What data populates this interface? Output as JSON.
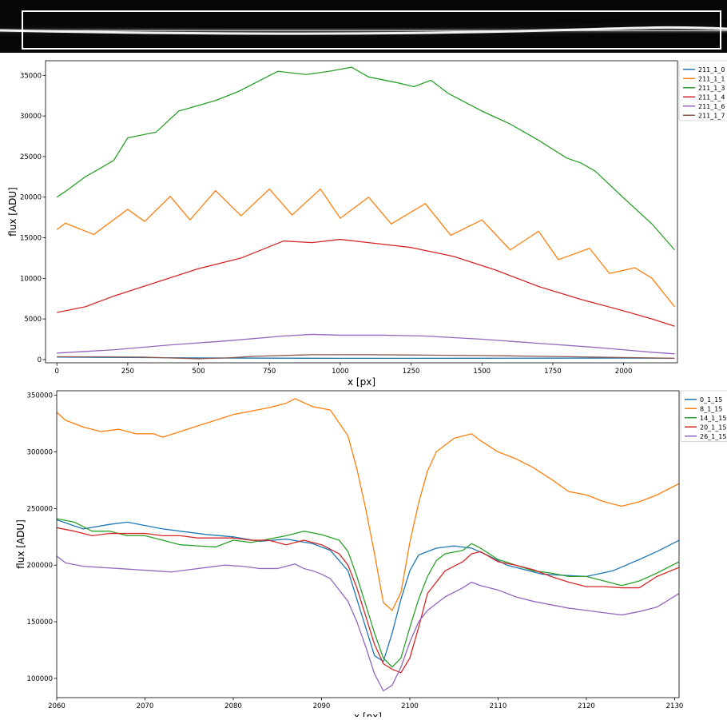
{
  "colors": [
    "#1f77b4",
    "#ff7f0e",
    "#2ca02c",
    "#d62728",
    "#9467bd",
    "#8c564b"
  ],
  "strip": {
    "label": "2D spectrum strip image with extraction box"
  },
  "chart_data": [
    {
      "type": "line",
      "xlabel": "x [px]",
      "ylabel": "flux [ADU]",
      "xlim": [
        -40,
        2190
      ],
      "ylim": [
        -400,
        36800
      ],
      "xticks": [
        0,
        250,
        500,
        750,
        1000,
        1250,
        1500,
        1750,
        2000
      ],
      "yticks": [
        0,
        5000,
        10000,
        15000,
        20000,
        25000,
        30000,
        35000
      ],
      "legend": "top-right",
      "grid": false,
      "series": [
        {
          "name": "211_1_0",
          "x": [
            0,
            250,
            500,
            750,
            1000,
            1250,
            1500,
            1750,
            2000,
            2180
          ],
          "y": [
            300,
            250,
            200,
            170,
            150,
            150,
            160,
            170,
            180,
            150
          ]
        },
        {
          "name": "211_1_1",
          "x": [
            0,
            30,
            130,
            250,
            310,
            400,
            470,
            560,
            650,
            750,
            830,
            930,
            1000,
            1100,
            1180,
            1300,
            1390,
            1500,
            1600,
            1700,
            1770,
            1880,
            1950,
            2040,
            2100,
            2180
          ],
          "y": [
            16000,
            16800,
            15400,
            18500,
            17000,
            20100,
            17200,
            20800,
            17700,
            21000,
            17800,
            21000,
            17400,
            20000,
            16700,
            19200,
            15300,
            17200,
            13500,
            15800,
            12300,
            13700,
            10600,
            11300,
            10000,
            6500
          ]
        },
        {
          "name": "211_1_3",
          "x": [
            0,
            30,
            100,
            200,
            250,
            350,
            430,
            560,
            640,
            780,
            880,
            960,
            1040,
            1100,
            1200,
            1260,
            1320,
            1380,
            1500,
            1600,
            1700,
            1800,
            1850,
            1900,
            2000,
            2100,
            2180
          ],
          "y": [
            20000,
            20700,
            22500,
            24500,
            27300,
            28000,
            30600,
            31900,
            33000,
            35500,
            35100,
            35500,
            36000,
            34800,
            34100,
            33600,
            34400,
            32800,
            30600,
            29000,
            27000,
            24800,
            24200,
            23200,
            19900,
            16700,
            13500
          ]
        },
        {
          "name": "211_1_4",
          "x": [
            0,
            100,
            200,
            350,
            500,
            650,
            800,
            900,
            1000,
            1100,
            1250,
            1400,
            1550,
            1700,
            1850,
            2000,
            2100,
            2180
          ],
          "y": [
            5800,
            6500,
            7800,
            9500,
            11200,
            12500,
            14600,
            14400,
            14800,
            14400,
            13800,
            12700,
            11000,
            9000,
            7400,
            6000,
            5000,
            4100
          ]
        },
        {
          "name": "211_1_6",
          "x": [
            0,
            200,
            400,
            600,
            800,
            900,
            1000,
            1150,
            1300,
            1500,
            1700,
            1900,
            2100,
            2180
          ],
          "y": [
            800,
            1200,
            1800,
            2300,
            2900,
            3100,
            3000,
            3000,
            2900,
            2500,
            2000,
            1500,
            900,
            700
          ]
        },
        {
          "name": "211_1_7",
          "x": [
            0,
            300,
            500,
            600,
            700,
            900,
            1100,
            1300,
            1500,
            1700,
            1900,
            2100,
            2180
          ],
          "y": [
            350,
            300,
            100,
            200,
            400,
            600,
            600,
            550,
            500,
            400,
            300,
            200,
            150
          ]
        }
      ]
    },
    {
      "type": "line",
      "xlabel": "x [px]",
      "ylabel": "flux [ADU]",
      "xlim": [
        2060,
        2130.5
      ],
      "ylim": [
        83000,
        354000
      ],
      "xticks": [
        2060,
        2070,
        2080,
        2090,
        2100,
        2110,
        2120,
        2130
      ],
      "yticks": [
        100000,
        150000,
        200000,
        250000,
        300000,
        350000
      ],
      "legend": "top-right",
      "grid": false,
      "series": [
        {
          "name": "0_1_15",
          "x": [
            2060,
            2063,
            2066,
            2068,
            2070,
            2072,
            2074,
            2077,
            2080,
            2083,
            2086,
            2089,
            2091,
            2093,
            2094,
            2095,
            2096,
            2097,
            2098,
            2099,
            2100,
            2101,
            2103,
            2105,
            2107,
            2109,
            2111,
            2115,
            2120,
            2123,
            2126,
            2128,
            2130.5
          ],
          "y": [
            240000,
            232000,
            236000,
            238000,
            235000,
            232000,
            230000,
            227000,
            225000,
            221000,
            223000,
            219000,
            213000,
            195000,
            170000,
            145000,
            120000,
            115000,
            140000,
            170000,
            195000,
            209000,
            215000,
            217000,
            215000,
            208000,
            200000,
            192000,
            190000,
            195000,
            205000,
            212000,
            222000
          ]
        },
        {
          "name": "8_1_15",
          "x": [
            2060,
            2061,
            2063,
            2065,
            2067,
            2069,
            2071,
            2072,
            2074,
            2076,
            2078,
            2080,
            2082,
            2084,
            2086,
            2087,
            2089,
            2091,
            2093,
            2094,
            2095,
            2096,
            2097,
            2098,
            2099,
            2100,
            2101,
            2102,
            2103,
            2104,
            2105,
            2106,
            2107,
            2108,
            2110,
            2112,
            2114,
            2116,
            2118,
            2120,
            2122,
            2124,
            2126,
            2128,
            2130.5
          ],
          "y": [
            335000,
            328000,
            322000,
            318000,
            320000,
            316000,
            316000,
            313000,
            318000,
            323000,
            328000,
            333000,
            336000,
            339000,
            343000,
            347000,
            340000,
            337000,
            314000,
            285000,
            250000,
            210000,
            167000,
            160000,
            176000,
            220000,
            255000,
            283000,
            300000,
            306000,
            312000,
            314000,
            316000,
            310000,
            300000,
            294000,
            286000,
            276000,
            265000,
            262000,
            256000,
            252000,
            256000,
            262000,
            272000
          ]
        },
        {
          "name": "14_1_15",
          "x": [
            2060,
            2062,
            2064,
            2066,
            2068,
            2070,
            2072,
            2074,
            2076,
            2078,
            2080,
            2082,
            2084,
            2086,
            2088,
            2090,
            2092,
            2093,
            2094,
            2095,
            2096,
            2097,
            2098,
            2099,
            2100,
            2101,
            2102,
            2103,
            2104,
            2106,
            2107,
            2108,
            2110,
            2112,
            2114,
            2116,
            2118,
            2120,
            2122,
            2124,
            2126,
            2128,
            2130.5
          ],
          "y": [
            241000,
            238000,
            230000,
            230000,
            226000,
            226000,
            222000,
            218000,
            217000,
            216000,
            222000,
            220000,
            223000,
            226000,
            230000,
            227000,
            222000,
            212000,
            190000,
            165000,
            140000,
            118000,
            110000,
            118000,
            145000,
            170000,
            190000,
            204000,
            210000,
            213000,
            219000,
            215000,
            205000,
            200000,
            195000,
            193000,
            190000,
            190000,
            186000,
            182000,
            186000,
            193000,
            203000
          ]
        },
        {
          "name": "20_1_15",
          "x": [
            2060,
            2062,
            2064,
            2066,
            2068,
            2070,
            2072,
            2074,
            2076,
            2078,
            2080,
            2082,
            2084,
            2086,
            2088,
            2090,
            2092,
            2093,
            2094,
            2095,
            2096,
            2097,
            2098,
            2099,
            2100,
            2101,
            2102,
            2104,
            2106,
            2107,
            2108,
            2110,
            2112,
            2114,
            2116,
            2118,
            2120,
            2122,
            2124,
            2126,
            2128,
            2130.5
          ],
          "y": [
            233000,
            230000,
            226000,
            228000,
            228000,
            228000,
            226000,
            226000,
            224000,
            224000,
            224000,
            222000,
            222000,
            218000,
            222000,
            218000,
            210000,
            200000,
            180000,
            155000,
            130000,
            113000,
            108000,
            105000,
            118000,
            145000,
            175000,
            195000,
            203000,
            210000,
            212000,
            203000,
            200000,
            196000,
            190000,
            185000,
            181000,
            181000,
            180000,
            180000,
            190000,
            198000
          ]
        },
        {
          "name": "26_1_15",
          "x": [
            2060,
            2061,
            2063,
            2065,
            2067,
            2069,
            2071,
            2073,
            2075,
            2077,
            2079,
            2081,
            2083,
            2085,
            2087,
            2088,
            2089,
            2090,
            2091,
            2092,
            2093,
            2094,
            2095,
            2096,
            2097,
            2098,
            2099,
            2100,
            2101,
            2102,
            2104,
            2106,
            2107,
            2108,
            2110,
            2112,
            2114,
            2116,
            2118,
            2120,
            2122,
            2124,
            2126,
            2128,
            2130.5
          ],
          "y": [
            208000,
            202000,
            199000,
            198000,
            197000,
            196000,
            195000,
            194000,
            196000,
            198000,
            200000,
            199000,
            197000,
            197000,
            201000,
            197000,
            195000,
            192000,
            188000,
            178000,
            168000,
            150000,
            128000,
            104000,
            89000,
            94000,
            110000,
            132000,
            150000,
            160000,
            172000,
            180000,
            185000,
            182000,
            178000,
            172000,
            168000,
            165000,
            162000,
            160000,
            158000,
            156000,
            159000,
            163000,
            175000
          ]
        }
      ]
    }
  ]
}
